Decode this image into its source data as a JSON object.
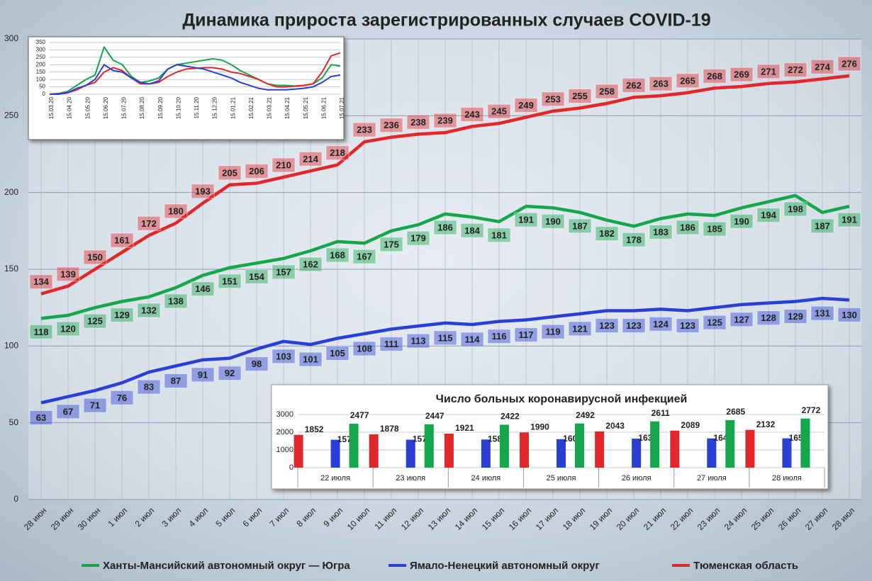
{
  "chart_data": [
    {
      "type": "line",
      "title": "Динамика прироста зарегистрированных случаев COVID-19",
      "categories": [
        "28 июн",
        "29 июн",
        "30 июн",
        "1 июл",
        "2 июл",
        "3 июл",
        "4 июл",
        "5 июл",
        "6 июл",
        "7 июл",
        "8 июл",
        "9 июл",
        "10 июл",
        "11 июл",
        "12 июл",
        "13 июл",
        "14 июл",
        "15 июл",
        "16 июл",
        "17 июл",
        "18 июл",
        "19 июл",
        "20 июл",
        "21 июл",
        "22 июл",
        "23 июл",
        "24 июл",
        "25 июл",
        "26 июл",
        "27 июл",
        "28 июл"
      ],
      "series": [
        {
          "name": "Ханты-Мансийский автономный округ — Югра",
          "color": "#13a64a",
          "values": [
            118,
            120,
            125,
            129,
            132,
            138,
            146,
            151,
            154,
            157,
            162,
            168,
            167,
            175,
            179,
            186,
            184,
            181,
            191,
            190,
            187,
            182,
            178,
            183,
            186,
            185,
            190,
            194,
            198,
            187,
            191
          ]
        },
        {
          "name": "Ямало-Ненецкий автономный округ",
          "color": "#2a3fd6",
          "values": [
            63,
            67,
            71,
            76,
            83,
            87,
            91,
            92,
            98,
            103,
            101,
            105,
            108,
            111,
            113,
            115,
            114,
            116,
            117,
            119,
            121,
            123,
            123,
            124,
            123,
            125,
            127,
            128,
            129,
            131,
            130
          ]
        },
        {
          "name": "Тюменская область",
          "color": "#e3262a",
          "values": [
            134,
            139,
            150,
            161,
            172,
            180,
            193,
            205,
            206,
            210,
            214,
            218,
            233,
            236,
            238,
            239,
            243,
            245,
            249,
            253,
            255,
            258,
            262,
            263,
            265,
            268,
            269,
            271,
            272,
            274,
            276
          ]
        }
      ],
      "ylim": [
        0,
        300
      ],
      "yticks": [
        0,
        50,
        100,
        150,
        200,
        250,
        300
      ],
      "grid": true,
      "legend": "bottom"
    },
    {
      "type": "line",
      "categories": [
        "15.03.20",
        null,
        "15.04.20",
        null,
        "15.05.20",
        null,
        "15.06.20",
        null,
        "15.07.20",
        null,
        "15.08.20",
        null,
        "15.09.20",
        null,
        "15.10.20",
        null,
        "15.11.20",
        null,
        "15.12.20",
        null,
        "15.01.21",
        null,
        "15.02.21",
        null,
        "15.03.21",
        null,
        "15.04.21",
        null,
        "15.05.21",
        null,
        "15.06.21",
        null,
        "15.07.21"
      ],
      "series": [
        {
          "color": "#13a64a",
          "values": [
            0,
            5,
            20,
            60,
            100,
            130,
            320,
            230,
            200,
            120,
            80,
            90,
            110,
            170,
            200,
            210,
            220,
            230,
            240,
            230,
            200,
            160,
            130,
            100,
            70,
            60,
            60,
            55,
            60,
            70,
            110,
            200,
            190
          ]
        },
        {
          "color": "#e3262a",
          "values": [
            0,
            5,
            10,
            30,
            60,
            80,
            150,
            180,
            160,
            110,
            70,
            70,
            80,
            120,
            150,
            170,
            175,
            180,
            180,
            170,
            150,
            140,
            120,
            100,
            70,
            50,
            50,
            55,
            60,
            70,
            150,
            260,
            280
          ]
        },
        {
          "color": "#2a3fd6",
          "values": [
            0,
            0,
            10,
            40,
            60,
            100,
            200,
            160,
            150,
            110,
            80,
            70,
            90,
            170,
            200,
            190,
            180,
            170,
            150,
            130,
            110,
            80,
            60,
            40,
            30,
            30,
            30,
            35,
            40,
            50,
            80,
            120,
            130
          ]
        }
      ],
      "ylim": [
        0,
        350
      ],
      "yticks": [
        0,
        50,
        100,
        150,
        200,
        250,
        300,
        350
      ],
      "grid": true
    },
    {
      "type": "bar",
      "title": "Число больных коронавирусной инфекцией",
      "categories": [
        "22 июля",
        "23 июля",
        "24 июля",
        "25 июля",
        "26 июля",
        "27 июля",
        "28 июля"
      ],
      "series": [
        {
          "color": "#e3262a",
          "values": [
            1852,
            1878,
            1921,
            1990,
            2043,
            2089,
            2132
          ]
        },
        {
          "color": "#2a3fd6",
          "values": [
            1574,
            1578,
            1587,
            1606,
            1637,
            1649,
            1655
          ]
        },
        {
          "color": "#13a64a",
          "values": [
            2477,
            2447,
            2422,
            2492,
            2611,
            2685,
            2772
          ]
        }
      ],
      "ylim": [
        0,
        3000
      ],
      "yticks": [
        0,
        1000,
        2000,
        3000
      ],
      "grid": true
    }
  ]
}
